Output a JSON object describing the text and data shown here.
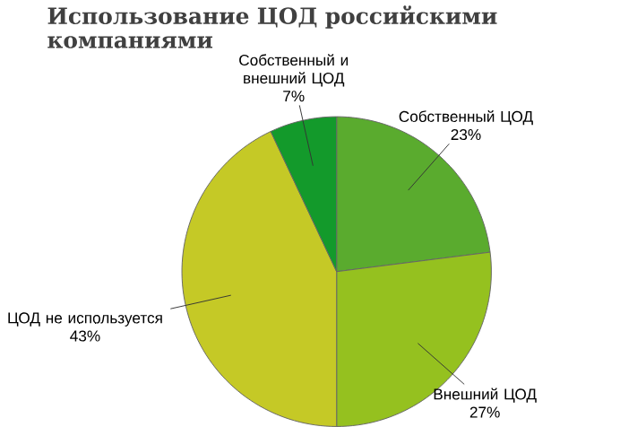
{
  "chart_data": {
    "type": "pie",
    "title": "Использование ЦОД российскими компаниями",
    "categories": [
      "Собственный ЦОД",
      "Внешний ЦОД",
      "ЦОД не используется",
      "Собственный и внешний ЦОД"
    ],
    "values": [
      23,
      27,
      43,
      7
    ],
    "value_labels": [
      "23%",
      "27%",
      "43%",
      "7%"
    ],
    "colors": [
      "#5aab2e",
      "#95c11f",
      "#c5c926",
      "#139a2b"
    ]
  }
}
